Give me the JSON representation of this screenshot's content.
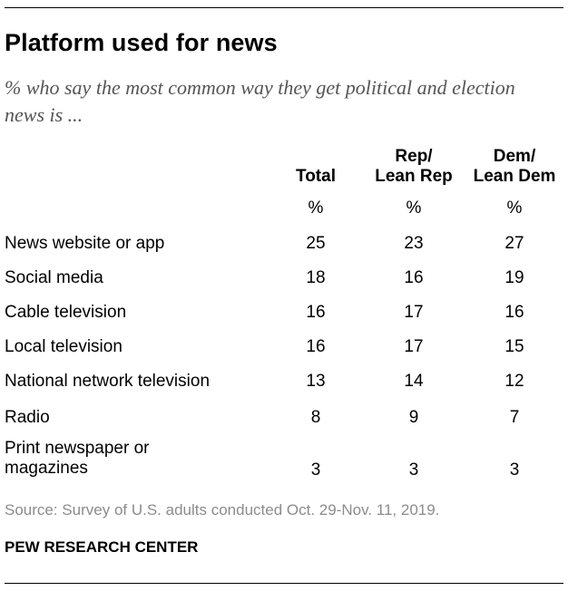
{
  "title": "Platform used for news",
  "subtitle": "% who say the most common way they get political and election news is ...",
  "source": "Source: Survey of U.S. adults conducted Oct. 29-Nov. 11, 2019.",
  "organization": "PEW RESEARCH CENTER",
  "chart_data": {
    "type": "table",
    "columns": [
      {
        "line1": "",
        "line2": "Total",
        "unit": "%"
      },
      {
        "line1": "Rep/",
        "line2": "Lean Rep",
        "unit": "%"
      },
      {
        "line1": "Dem/",
        "line2": "Lean Dem",
        "unit": "%"
      }
    ],
    "rows": [
      {
        "label": "News website or app",
        "values": [
          25,
          23,
          27
        ]
      },
      {
        "label": "Social media",
        "values": [
          18,
          16,
          19
        ]
      },
      {
        "label": "Cable television",
        "values": [
          16,
          17,
          16
        ]
      },
      {
        "label": "Local television",
        "values": [
          16,
          17,
          15
        ]
      },
      {
        "label": "National network television",
        "values": [
          13,
          14,
          12
        ]
      },
      {
        "label": "Radio",
        "values": [
          8,
          9,
          7
        ]
      },
      {
        "label": "Print newspaper or magazines",
        "values": [
          3,
          3,
          3
        ]
      }
    ]
  }
}
